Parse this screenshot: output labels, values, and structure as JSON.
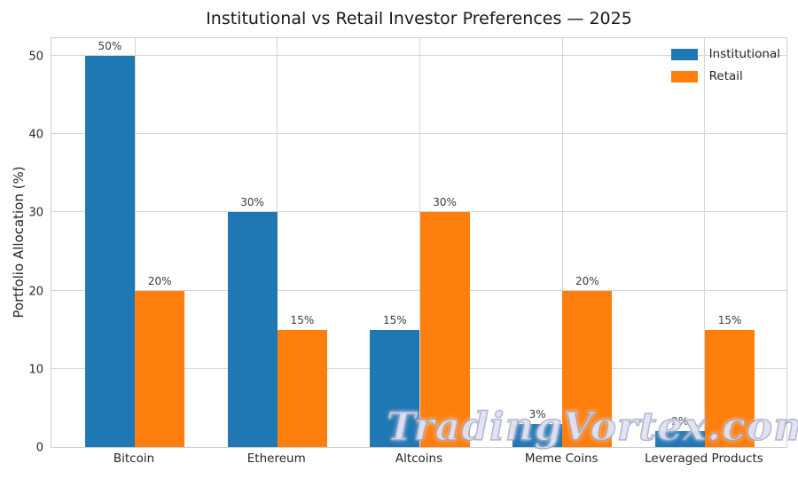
{
  "chart_data": {
    "type": "bar",
    "title": "Institutional vs Retail Investor Preferences — 2025",
    "xlabel": "",
    "ylabel": "Portfolio Allocation (%)",
    "categories": [
      "Bitcoin",
      "Ethereum",
      "Altcoins",
      "Meme Coins",
      "Leveraged Products"
    ],
    "series": [
      {
        "name": "Institutional",
        "color": "#1f77b4",
        "values": [
          50,
          30,
          15,
          3,
          2
        ],
        "labels": [
          "50%",
          "30%",
          "15%",
          "3%",
          "2%"
        ]
      },
      {
        "name": "Retail",
        "color": "#ff7f0e",
        "values": [
          20,
          15,
          30,
          20,
          15
        ],
        "labels": [
          "20%",
          "15%",
          "30%",
          "20%",
          "15%"
        ]
      }
    ],
    "y_ticks": [
      0,
      10,
      20,
      30,
      40,
      50
    ],
    "ylim": [
      0,
      52.5
    ],
    "grid": "both",
    "legend_position": "upper right",
    "bar_width": 0.35
  },
  "watermark": "TradingVortex.com",
  "colors": {
    "grid": "#d6d6d6",
    "plot_border": "#cfcfcf",
    "title_text": "#1a1a1a",
    "tick_text": "#262626",
    "bar_label_text": "#3a3a3a"
  }
}
